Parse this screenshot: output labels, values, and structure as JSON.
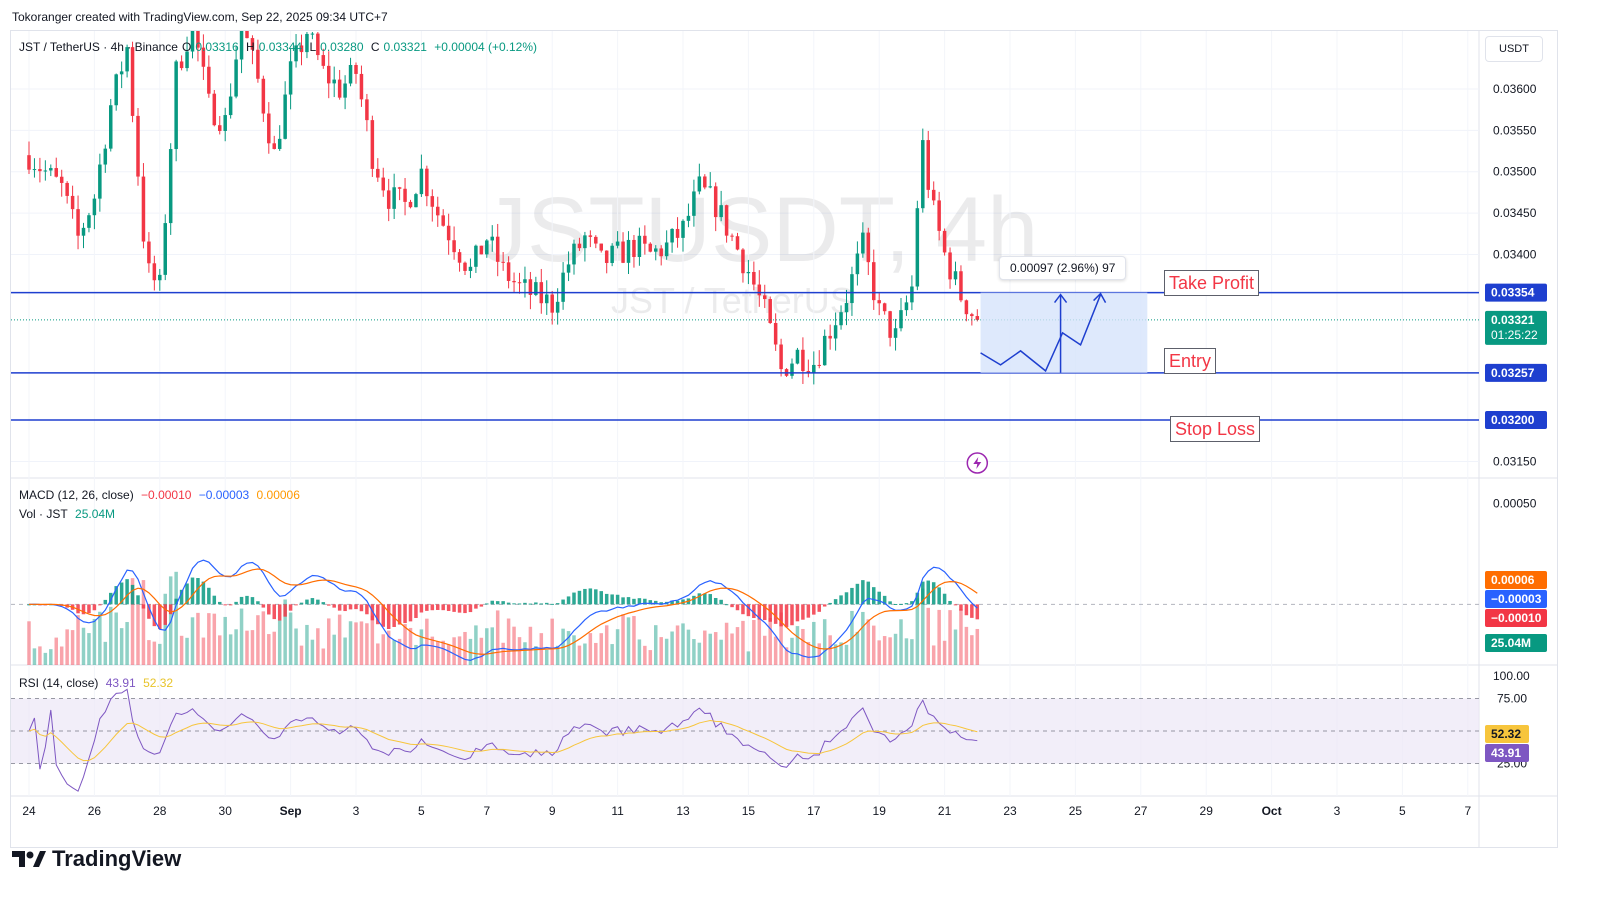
{
  "header": {
    "note": "Tokoranger created with TradingView.com, Sep 22, 2025 09:34 UTC+7"
  },
  "legend": {
    "symbol": "JST / TetherUS · 4h · Binance",
    "open_label": "O",
    "open": "0.03316",
    "high_label": "H",
    "high": "0.03344",
    "low_label": "L",
    "low": "0.03280",
    "close_label": "C",
    "close": "0.03321",
    "change": "+0.00004 (+0.12%)"
  },
  "watermark": {
    "line1": "JSTUSDT, 4h",
    "line2": "JST / TetherUS"
  },
  "currency": "USDT",
  "brand": "TradingView",
  "annotations": {
    "take_profit": "Take Profit",
    "entry": "Entry",
    "stop_loss": "Stop Loss",
    "measure": "0.00097 (2.96%) 97"
  },
  "colors": {
    "up": "#089981",
    "down": "#f23645",
    "level_line": "#1e3fcf",
    "macd": "#2962ff",
    "signal": "#ff6d00",
    "rsi": "#7e57c2",
    "rsi_ma": "#f7c53c",
    "box_fill": "#d6e3fb"
  },
  "indicators": {
    "macd": {
      "label": "MACD (12, 26, close)",
      "hist": "−0.00010",
      "macd": "−0.00003",
      "signal": "0.00006"
    },
    "vol": {
      "label": "Vol · JST",
      "value": "25.04M"
    },
    "rsi": {
      "label": "RSI (14, close)",
      "rsi": "43.91",
      "ma": "52.32"
    }
  },
  "price_badges": {
    "tp": "0.03354",
    "current": "0.03321",
    "countdown": "01:25:22",
    "entry": "0.03257",
    "sl": "0.03200"
  },
  "macd_badges": {
    "signal": "0.00006",
    "macd": "−0.00003",
    "hist": "−0.00010",
    "vol": "25.04M"
  },
  "rsi_badges": {
    "ma": "52.32",
    "rsi": "43.91"
  },
  "chart_data": {
    "type": "candlestick",
    "timeframe": "4h",
    "y_axis": {
      "ticks": [
        "0.03600",
        "0.03550",
        "0.03500",
        "0.03450",
        "0.03400",
        "0.03150"
      ],
      "tick_values": [
        0.036,
        0.0355,
        0.035,
        0.0345,
        0.034,
        0.0315
      ],
      "range": [
        0.0313,
        0.0367
      ]
    },
    "x_axis": {
      "ticks": [
        "24",
        "26",
        "28",
        "30",
        "Sep",
        "3",
        "5",
        "7",
        "9",
        "11",
        "13",
        "15",
        "17",
        "19",
        "21",
        "23",
        "25",
        "27",
        "29",
        "Oct",
        "3",
        "5",
        "7"
      ],
      "range_days": [
        "Aug 24",
        "Oct 7"
      ]
    },
    "levels": [
      {
        "name": "Take Profit",
        "price": 0.03354
      },
      {
        "name": "Entry",
        "price": 0.03257
      },
      {
        "name": "Stop Loss",
        "price": 0.032
      }
    ],
    "current_price": 0.03321,
    "close_path": [
      [
        0,
        0.0352
      ],
      [
        1,
        0.0348
      ],
      [
        1.5,
        0.0342
      ],
      [
        2,
        0.0347
      ],
      [
        2.5,
        0.0358
      ],
      [
        3,
        0.0365
      ],
      [
        3.6,
        0.0338
      ],
      [
        4,
        0.0336
      ],
      [
        4.5,
        0.0362
      ],
      [
        5,
        0.0368
      ],
      [
        5.5,
        0.0358
      ],
      [
        6,
        0.0356
      ],
      [
        6.5,
        0.0368
      ],
      [
        7,
        0.0361
      ],
      [
        7.5,
        0.0352
      ],
      [
        8,
        0.0362
      ],
      [
        8.5,
        0.0367
      ],
      [
        9,
        0.0362
      ],
      [
        9.5,
        0.036
      ],
      [
        10,
        0.0362
      ],
      [
        10.5,
        0.0352
      ],
      [
        11,
        0.0347
      ],
      [
        11.5,
        0.0346
      ],
      [
        12,
        0.035
      ],
      [
        12.5,
        0.0345
      ],
      [
        13.5,
        0.0338
      ],
      [
        14,
        0.0342
      ],
      [
        14.5,
        0.0338
      ],
      [
        15,
        0.0336
      ],
      [
        15.5,
        0.0335
      ],
      [
        16,
        0.0334
      ],
      [
        16.5,
        0.0339
      ],
      [
        17,
        0.0342
      ],
      [
        17.5,
        0.0339
      ],
      [
        18,
        0.034
      ],
      [
        18.5,
        0.0341
      ],
      [
        19,
        0.034
      ],
      [
        19.5,
        0.0341
      ],
      [
        20,
        0.0343
      ],
      [
        20.5,
        0.0348
      ],
      [
        21,
        0.0346
      ],
      [
        21.5,
        0.0342
      ],
      [
        22,
        0.0338
      ],
      [
        22.5,
        0.0333
      ],
      [
        23,
        0.0326
      ],
      [
        23.5,
        0.0328
      ],
      [
        24,
        0.0327
      ],
      [
        24.5,
        0.0331
      ],
      [
        25,
        0.0335
      ],
      [
        25.5,
        0.0341
      ],
      [
        26,
        0.0333
      ],
      [
        26.5,
        0.033
      ],
      [
        27,
        0.0336
      ],
      [
        27.3,
        0.0354
      ],
      [
        27.6,
        0.0346
      ],
      [
        28,
        0.034
      ],
      [
        28.5,
        0.0335
      ],
      [
        29,
        0.0332
      ]
    ],
    "macd_range": [
      -0.0003,
      0.00062
    ],
    "rsi_range": [
      0,
      100
    ],
    "rsi_bands": [
      25,
      50,
      75
    ]
  }
}
